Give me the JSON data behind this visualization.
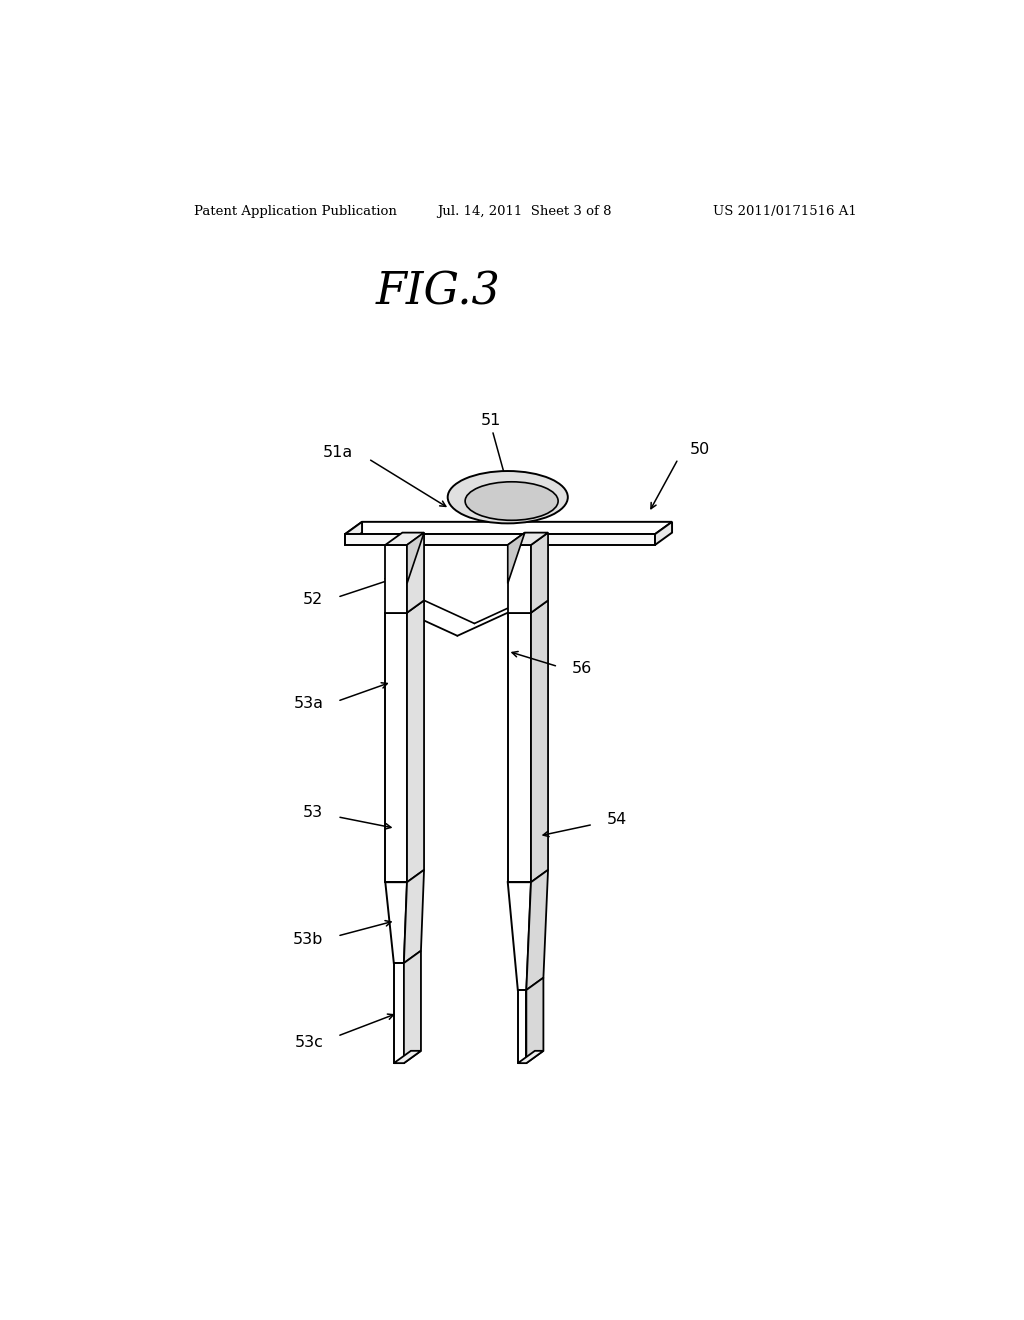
{
  "title": "FIG.3",
  "header_left": "Patent Application Publication",
  "header_mid": "Jul. 14, 2011  Sheet 3 of 8",
  "header_right": "US 2011/0171516 A1",
  "bg_color": "#ffffff",
  "line_color": "#000000",
  "lw": 1.3
}
